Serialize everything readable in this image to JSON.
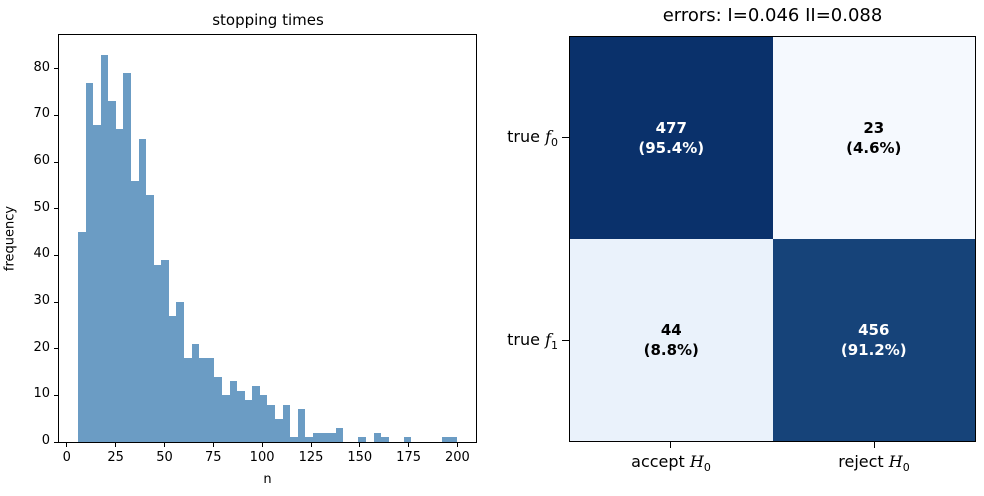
{
  "left_plot": {
    "title": "stopping times",
    "xlabel": "n",
    "ylabel": "frequency"
  },
  "right_plot": {
    "title": "errors: I=0.046 II=0.088",
    "row_labels": [
      {
        "prefix": "true ",
        "var": "f",
        "sub": "0"
      },
      {
        "prefix": "true ",
        "var": "f",
        "sub": "1"
      }
    ],
    "col_labels": [
      {
        "prefix": "accept ",
        "var": "H",
        "sub": "0"
      },
      {
        "prefix": "reject ",
        "var": "H",
        "sub": "0"
      }
    ]
  },
  "chart_data": [
    {
      "type": "bar",
      "title": "stopping times",
      "xlabel": "n",
      "ylabel": "frequency",
      "bin_start": 5.7,
      "bin_width": 3.88,
      "counts": [
        45,
        77,
        68,
        83,
        73,
        67,
        79,
        56,
        65,
        53,
        38,
        39,
        27,
        30,
        18,
        21,
        18,
        18,
        14,
        10,
        13,
        11,
        9,
        12,
        10,
        8,
        5,
        8,
        1,
        7,
        1,
        2,
        2,
        2,
        3,
        0,
        0,
        1,
        0,
        2,
        1,
        0,
        0,
        1,
        0,
        0,
        0,
        0,
        1,
        1
      ],
      "xlim": [
        -4,
        209.5
      ],
      "ylim": [
        0,
        87.2
      ],
      "xticks": [
        0,
        25,
        50,
        75,
        100,
        125,
        150,
        175,
        200
      ],
      "yticks": [
        0,
        10,
        20,
        30,
        40,
        50,
        60,
        70,
        80
      ],
      "bar_color": "#6b9cc4",
      "grid": false
    },
    {
      "type": "heatmap",
      "title": "errors: I=0.046 II=0.088",
      "rows": [
        "true f0",
        "true f1"
      ],
      "cols": [
        "accept H0",
        "reject H0"
      ],
      "cells": [
        [
          {
            "value": "477",
            "pct": "(95.4%)",
            "bg": "#0a316b",
            "fg": "#ffffff"
          },
          {
            "value": "23",
            "pct": "(4.6%)",
            "bg": "#f5f9fe",
            "fg": "#000000"
          }
        ],
        [
          {
            "value": "44",
            "pct": "(8.8%)",
            "bg": "#eaf2fb",
            "fg": "#000000"
          },
          {
            "value": "456",
            "pct": "(91.2%)",
            "bg": "#164379",
            "fg": "#ffffff"
          }
        ]
      ]
    }
  ]
}
